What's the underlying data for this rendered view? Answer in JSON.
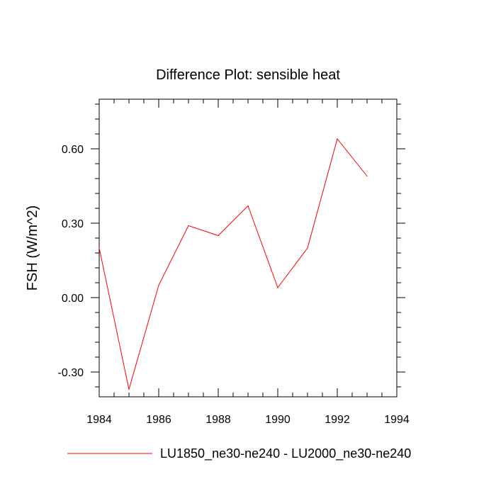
{
  "chart_data": {
    "type": "line",
    "title": "Difference Plot: sensible heat",
    "ylabel": "FSH  (W/m^2)",
    "xlabel": "",
    "xlim": [
      1984,
      1994
    ],
    "ylim": [
      -0.4,
      0.8
    ],
    "x_ticks": [
      1984,
      1986,
      1988,
      1990,
      1992,
      1994
    ],
    "x_tick_labels": [
      "1984",
      "1986",
      "1988",
      "1990",
      "1992",
      "1994"
    ],
    "y_ticks": [
      -0.3,
      0.0,
      0.3,
      0.6
    ],
    "y_tick_labels": [
      "-0.30",
      "0.00",
      "0.30",
      "0.60"
    ],
    "grid": false,
    "legend": "bottom",
    "series": [
      {
        "name": "LU1850_ne30-ne240 - LU2000_ne30-ne240",
        "color": "#ff0000",
        "x": [
          1984,
          1985,
          1986,
          1987,
          1988,
          1989,
          1990,
          1991,
          1992,
          1993
        ],
        "y": [
          0.2,
          -0.37,
          0.05,
          0.29,
          0.25,
          0.37,
          0.04,
          0.2,
          0.64,
          0.49
        ]
      }
    ]
  }
}
